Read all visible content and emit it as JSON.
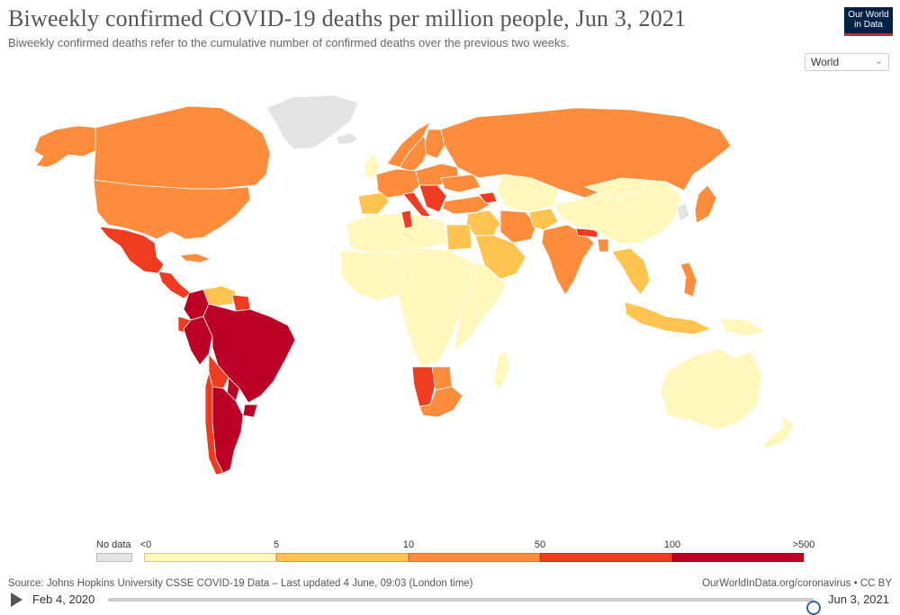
{
  "header": {
    "title": "Biweekly confirmed COVID-19 deaths per million people, Jun 3, 2021",
    "subtitle": "Biweekly confirmed deaths refer to the cumulative number of confirmed deaths over the previous two weeks."
  },
  "logo": {
    "line1": "Our World",
    "line2": "in Data"
  },
  "region_select": {
    "value": "World",
    "icon": "chevron-down-icon"
  },
  "colors": {
    "bins": [
      "#fff7bc",
      "#fec44f",
      "#fd8d3c",
      "#f03b20",
      "#bd0026"
    ],
    "no_data": "#e3e3e3",
    "ocean": "#ffffff",
    "border": "#ffffff"
  },
  "legend": {
    "no_data_label": "No data",
    "ticks": [
      "<0",
      "5",
      "10",
      "50",
      "100",
      ">500"
    ]
  },
  "map_data": {
    "canada": 2,
    "usa": 2,
    "alaska": 2,
    "greenland": -1,
    "iceland": -1,
    "mexico": 3,
    "central-america": 3,
    "cuba": 2,
    "venezuela": 1,
    "colombia": 4,
    "guyana": 3,
    "ecuador": 3,
    "peru": 4,
    "brazil": 4,
    "bolivia": 3,
    "paraguay": 4,
    "uruguay": 4,
    "argentina": 4,
    "chile": 3,
    "norway": 2,
    "sweden": 2,
    "finland": 2,
    "uk-ireland": 0,
    "west-europe": 2,
    "iberia": 1,
    "italy": 3,
    "balkans": 3,
    "east-europe": 2,
    "ukraine": 2,
    "russia": 2,
    "turkey": 2,
    "caucasus": 3,
    "north-africa": 0,
    "tunisia": 3,
    "egypt": 1,
    "west-africa": 0,
    "central-africa": 0,
    "east-africa": 0,
    "namibia": 3,
    "botswana": 2,
    "south-africa": 2,
    "madagascar": 0,
    "middle-east": 1,
    "arabia": 1,
    "iran": 2,
    "central-asia": 0,
    "afghanistan": 1,
    "india": 2,
    "nepal": 3,
    "bangladesh": 2,
    "china": 0,
    "mongolia": 0,
    "korea": -1,
    "japan": 2,
    "southeast-asia": 1,
    "philippines": 2,
    "indonesia": 1,
    "papua": 0,
    "australia": 0,
    "new-zealand": 0
  },
  "source": {
    "text": "Source: Johns Hopkins University CSSE COVID-19 Data – Last updated 4 June, 09:03 (London time)",
    "credit": "OurWorldInData.org/coronavirus • CC BY"
  },
  "timeline": {
    "start_label": "Feb 4, 2020",
    "end_label": "Jun 3, 2021",
    "progress": 1.0
  }
}
